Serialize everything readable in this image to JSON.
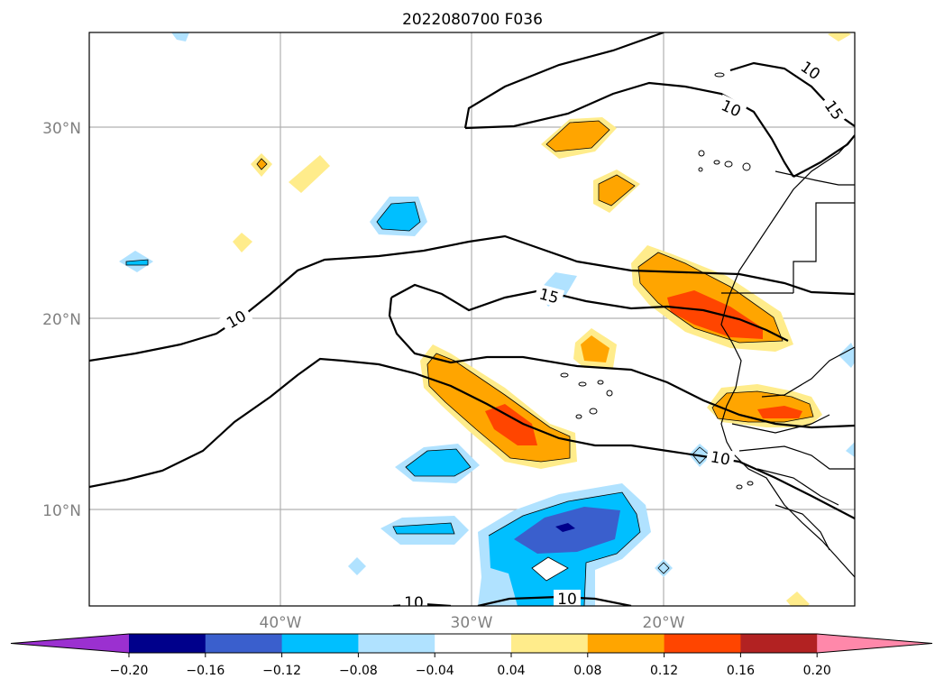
{
  "map": {
    "title": "2022080700 F036",
    "lat_labels": [
      "30°N",
      "20°N",
      "10°N"
    ],
    "lon_labels": [
      "40°W",
      "30°W",
      "20°W"
    ],
    "contour_labels": [
      "10",
      "10",
      "15",
      "15",
      "10",
      "10",
      "10"
    ]
  },
  "colorbar": {
    "colors": [
      "#9b30d0",
      "#00008b",
      "#3a5fcd",
      "#00bfff",
      "#b0e2ff",
      "#ffffff",
      "#ffec8b",
      "#ffa500",
      "#ff4500",
      "#b22222",
      "#ff88aa"
    ],
    "ticks": [
      "−0.20",
      "−0.16",
      "−0.12",
      "−0.08",
      "−0.04",
      "0.04",
      "0.08",
      "0.12",
      "0.16",
      "0.20"
    ]
  }
}
